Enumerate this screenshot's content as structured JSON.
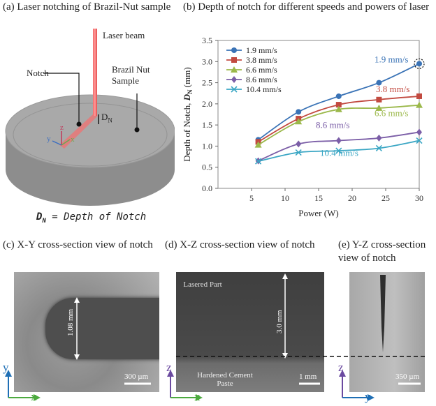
{
  "panels": {
    "a": {
      "caption": "(a) Laser notching of Brazil-Nut sample",
      "laser_label": "Laser beam",
      "notch_label": "Notch",
      "sample_label": "Brazil Nut Sample",
      "dn_label": "D",
      "dn_sub": "N",
      "axis_x": "x",
      "axis_y": "y",
      "axis_z": "z",
      "definition_lhs": "D",
      "definition_sub": "N",
      "definition_rhs": "= Depth of Notch"
    },
    "b": {
      "caption": "(b) Depth of notch for different speeds and powers of laser"
    },
    "c": {
      "caption": "(c) X-Y cross-section view of notch",
      "dim_label": "1.08 mm",
      "scale_label": "300 µm",
      "axis_y": "y",
      "axis_x": "x"
    },
    "d": {
      "caption": "(d) X-Z cross-section view of notch",
      "top_region": "Lasered Part",
      "bottom_region": "Hardened Cement Paste",
      "dim_label": "3.0 mm",
      "scale_label": "1 mm",
      "axis_z": "z",
      "axis_x": "x"
    },
    "e": {
      "caption": "(e) Y-Z cross-section view of notch",
      "scale_label": "350 µm",
      "axis_z": "z",
      "axis_y": "y"
    }
  },
  "chart_data": {
    "type": "line",
    "title": "",
    "xlabel": "Power (W)",
    "ylabel": "Depth of Notch, D_N (mm)",
    "ylabel_main": "Depth of Notch, ",
    "ylabel_var": "D",
    "ylabel_sub": "N",
    "ylabel_unit": " (mm)",
    "xlim": [
      0,
      30
    ],
    "ylim": [
      0,
      3.5
    ],
    "xticks": [
      5,
      10,
      15,
      20,
      25,
      30
    ],
    "yticks": [
      0.0,
      0.5,
      1.0,
      1.5,
      2.0,
      2.5,
      3.0,
      3.5
    ],
    "x": [
      6,
      12,
      18,
      24,
      30
    ],
    "series": [
      {
        "name": "1.9 mm/s",
        "color": "#3a73b6",
        "marker": "circle",
        "values": [
          1.15,
          1.81,
          2.18,
          2.5,
          2.95
        ],
        "end_label": "1.9 mm/s"
      },
      {
        "name": "3.8 mm/s",
        "color": "#c24a40",
        "marker": "square",
        "values": [
          1.1,
          1.65,
          1.98,
          2.1,
          2.18
        ],
        "end_label": "3.8 mm/s"
      },
      {
        "name": "6.6 mm/s",
        "color": "#9bb84a",
        "marker": "triangle",
        "values": [
          1.03,
          1.58,
          1.87,
          1.9,
          1.97
        ],
        "end_label": "6.6 mm/s"
      },
      {
        "name": "8.6 mm/s",
        "color": "#7b5ea7",
        "marker": "diamond",
        "values": [
          0.65,
          1.05,
          1.13,
          1.19,
          1.33
        ],
        "end_label": "8.6 mm/s"
      },
      {
        "name": "10.4 mm/s",
        "color": "#3aa6c4",
        "marker": "x",
        "values": [
          0.64,
          0.85,
          0.89,
          0.95,
          1.13
        ],
        "end_label": "10.4 mm/s"
      }
    ]
  }
}
